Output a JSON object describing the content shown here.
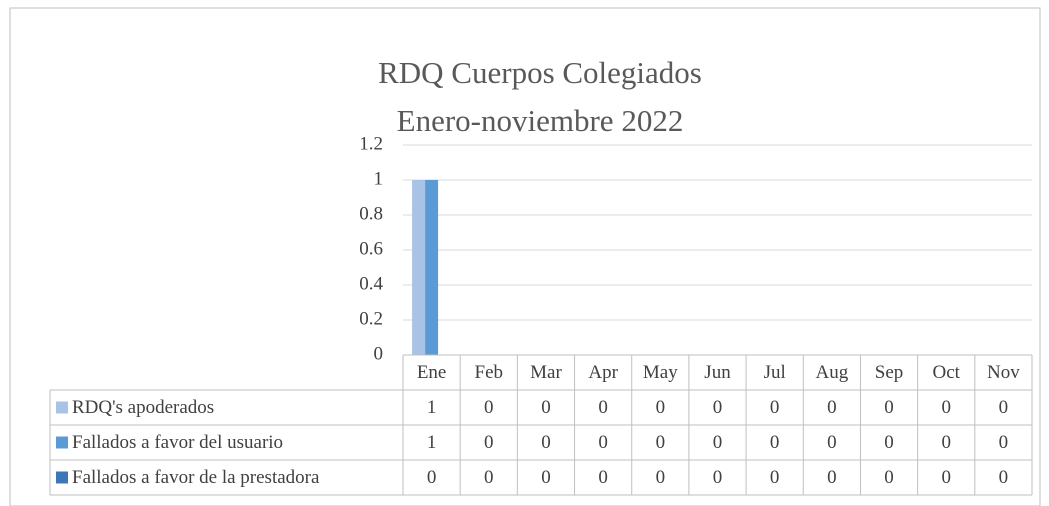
{
  "chart_data": {
    "type": "bar",
    "title": "RDQ Cuerpos Colegiados",
    "subtitle": "Enero-noviembre 2022",
    "categories": [
      "Ene",
      "Feb",
      "Mar",
      "Apr",
      "May",
      "Jun",
      "Jul",
      "Aug",
      "Sep",
      "Oct",
      "Nov"
    ],
    "series": [
      {
        "name": "RDQ's apoderados",
        "color": "#a9c3e6",
        "values": [
          1,
          0,
          0,
          0,
          0,
          0,
          0,
          0,
          0,
          0,
          0
        ]
      },
      {
        "name": "Fallados a favor del usuario",
        "color": "#5b9bd5",
        "values": [
          1,
          0,
          0,
          0,
          0,
          0,
          0,
          0,
          0,
          0,
          0
        ]
      },
      {
        "name": "Fallados a favor de la prestadora",
        "color": "#3d77b8",
        "values": [
          0,
          0,
          0,
          0,
          0,
          0,
          0,
          0,
          0,
          0,
          0
        ]
      }
    ],
    "ylim": [
      0,
      1.2
    ],
    "yticks": [
      0,
      0.2,
      0.4,
      0.6,
      0.8,
      1,
      1.2
    ],
    "grid": true,
    "data_table": true
  }
}
